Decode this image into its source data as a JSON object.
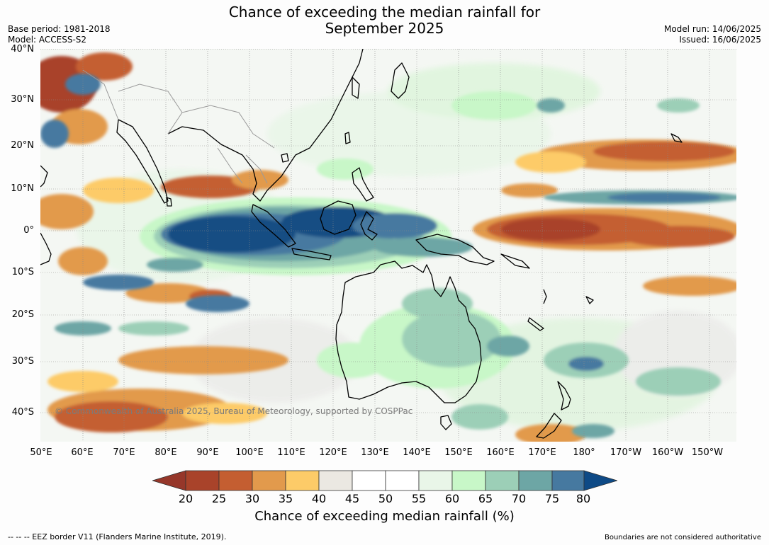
{
  "title_line1": "Chance of exceeding the median rainfall for",
  "title_line2": "September 2025",
  "base_period": "Base period: 1981-2018",
  "model": "Model: ACCESS-S2",
  "model_run": "Model run: 14/06/2025",
  "issued": "Issued: 16/06/2025",
  "lat_labels": [
    "40°N",
    "30°N",
    "20°N",
    "10°N",
    "0°",
    "10°S",
    "20°S",
    "30°S",
    "40°S"
  ],
  "lon_labels": [
    "50°E",
    "60°E",
    "70°E",
    "80°E",
    "90°E",
    "100°E",
    "110°E",
    "120°E",
    "130°E",
    "140°E",
    "150°E",
    "160°E",
    "170°E",
    "180°",
    "170°W",
    "160°W",
    "150°W"
  ],
  "copyright": "© Commonwealth of Australia 2025, Bureau of Meteorology, supported by COSPPac",
  "colorbar": {
    "ticks": [
      "20",
      "25",
      "30",
      "35",
      "40",
      "45",
      "50",
      "55",
      "60",
      "65",
      "70",
      "75",
      "80"
    ],
    "colors": [
      "#a9432a",
      "#c45e31",
      "#e29a4c",
      "#fdcb68",
      "#ebe8e2",
      "#ffffff",
      "#ffffff",
      "#e9f6e8",
      "#c8f7c8",
      "#9ccfb7",
      "#6da6a5",
      "#4679a0",
      "#154d83"
    ],
    "under_color": "#96372a",
    "over_color": "#0e4a86",
    "label": "Chance of exceeding median rainfall (%)"
  },
  "footer_left": "--  --  -- EEZ border V11 (Flanders Marine Institute, 2019).",
  "footer_right": "Boundaries are not considered authoritative"
}
